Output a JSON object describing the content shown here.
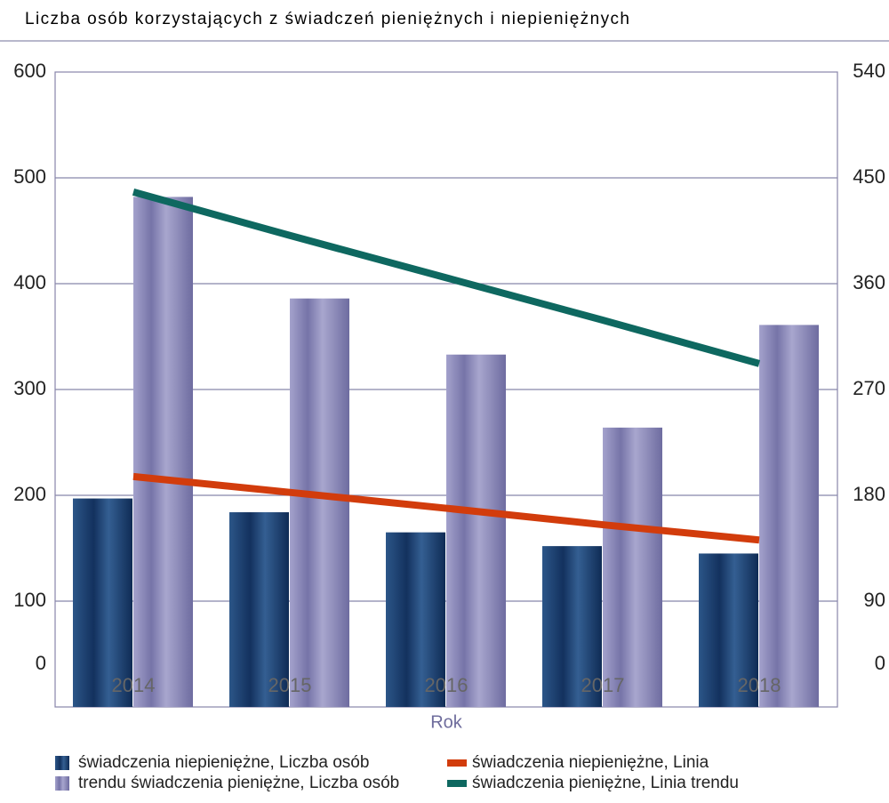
{
  "chart_data": {
    "type": "bar",
    "title": "Liczba osób korzystających z świadczeń pieniężnych i niepieniężnych",
    "xlabel": "Rok",
    "categories": [
      "2014",
      "2015",
      "2016",
      "2017",
      "2018"
    ],
    "series": [
      {
        "name": "świadczenia niepieniężne, Liczba osób",
        "color": "#2a4a78",
        "type": "bar",
        "values": [
          197,
          184,
          165,
          152,
          145
        ]
      },
      {
        "name": "trendu świadczenia pieniężne, Liczba osób",
        "color": "#8886b6",
        "type": "bar",
        "values": [
          482,
          386,
          333,
          264,
          361
        ]
      },
      {
        "name": "świadczenia niepieniężne, Linia",
        "color": "#d23c0c",
        "type": "line",
        "axis": "y2",
        "values": [
          196,
          182.5,
          169,
          155,
          142
        ]
      },
      {
        "name": "świadczenia pieniężne, Linia trendu",
        "color": "#0e6860",
        "type": "line",
        "axis": "y2",
        "values": [
          438,
          401,
          365,
          329,
          292
        ]
      }
    ],
    "ylim": [
      0,
      600
    ],
    "yticks": [
      0,
      100,
      200,
      300,
      400,
      500,
      600
    ],
    "y2lim": [
      0,
      540
    ],
    "y2ticks": [
      0,
      90,
      180,
      270,
      360,
      450,
      540
    ],
    "grid": true
  }
}
